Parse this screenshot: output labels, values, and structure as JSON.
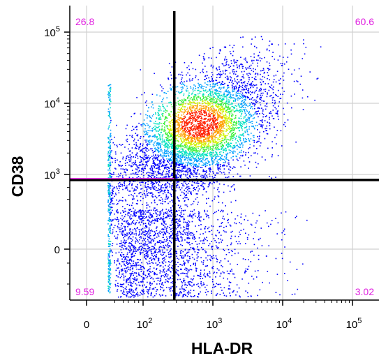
{
  "chart_data": {
    "type": "scatter",
    "style": "flow-cytometry density pseudocolor",
    "xlabel": "HLA-DR",
    "ylabel": "CD38",
    "x_scale": "biexponential",
    "y_scale": "biexponential",
    "x_ticks": [
      {
        "value": 0,
        "base": "0",
        "exp": ""
      },
      {
        "value": 100,
        "base": "10",
        "exp": "2"
      },
      {
        "value": 1000,
        "base": "10",
        "exp": "3"
      },
      {
        "value": 10000,
        "base": "10",
        "exp": "4"
      },
      {
        "value": 100000,
        "base": "10",
        "exp": "5"
      }
    ],
    "y_ticks": [
      {
        "value": 0,
        "base": "0",
        "exp": ""
      },
      {
        "value": 1000,
        "base": "10",
        "exp": "3"
      },
      {
        "value": 10000,
        "base": "10",
        "exp": "4"
      },
      {
        "value": 100000,
        "base": "10",
        "exp": "5"
      }
    ],
    "grid": true,
    "gate": {
      "x": 280,
      "y": 600
    },
    "quadrants": [
      {
        "position": "upper-left",
        "percent": "26.8"
      },
      {
        "position": "upper-right",
        "percent": "60.6"
      },
      {
        "position": "lower-left",
        "percent": "9.59"
      },
      {
        "position": "lower-right",
        "percent": "3.02"
      }
    ],
    "density_colors": [
      "#0000ff",
      "#00a0ff",
      "#00e0c0",
      "#40f040",
      "#d0f000",
      "#ffa000",
      "#ff2000"
    ],
    "quadrant_label_color": "#e020e0"
  }
}
